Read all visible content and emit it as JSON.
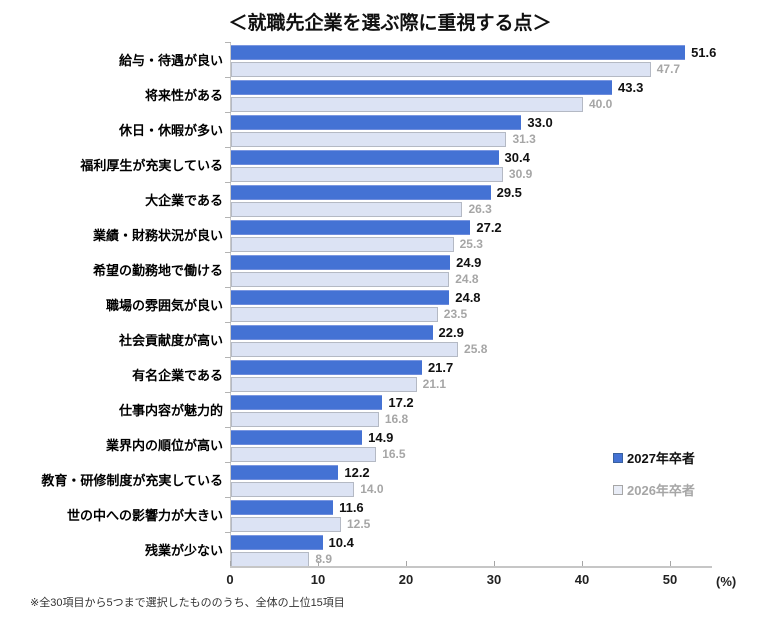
{
  "title": "＜就職先企業を選ぶ際に重視する点＞",
  "footnote": "※全30項目から5つまで選択したもののうち、全体の上位15項目",
  "axis_unit_label": "(%)",
  "colors": {
    "series_2027_bar": "#4472d4",
    "series_2026_bar": "#dce3f4",
    "series_2026_bar_border": "#b4b9c4",
    "value_2027_text": "#111111",
    "value_2026_text": "#a6a6a6",
    "axis_line": "#c6c6c6",
    "background": "#ffffff"
  },
  "legend": {
    "items": [
      {
        "label": "2027年卒者",
        "swatch": "dark-blue"
      },
      {
        "label": "2026年卒者",
        "swatch": "light-blue"
      }
    ]
  },
  "chart_data": {
    "type": "bar",
    "orientation": "horizontal",
    "title": "＜就職先企業を選ぶ際に重視する点＞",
    "xlabel": "(%)",
    "ylabel": "",
    "xlim": [
      0,
      50
    ],
    "x_ticks": [
      0,
      10,
      20,
      30,
      40,
      50
    ],
    "grid": false,
    "legend_position": "right-middle",
    "categories": [
      "給与・待遇が良い",
      "将来性がある",
      "休日・休暇が多い",
      "福利厚生が充実している",
      "大企業である",
      "業績・財務状況が良い",
      "希望の勤務地で働ける",
      "職場の雰囲気が良い",
      "社会貢献度が高い",
      "有名企業である",
      "仕事内容が魅力的",
      "業界内の順位が高い",
      "教育・研修制度が充実している",
      "世の中への影響力が大きい",
      "残業が少ない"
    ],
    "series": [
      {
        "name": "2027年卒者",
        "values": [
          51.6,
          43.3,
          33.0,
          30.4,
          29.5,
          27.2,
          24.9,
          24.8,
          22.9,
          21.7,
          17.2,
          14.9,
          12.2,
          11.6,
          10.4
        ]
      },
      {
        "name": "2026年卒者",
        "values": [
          47.7,
          40.0,
          31.3,
          30.9,
          26.3,
          25.3,
          24.8,
          23.5,
          25.8,
          21.1,
          16.8,
          16.5,
          14.0,
          12.5,
          8.9
        ]
      }
    ]
  }
}
